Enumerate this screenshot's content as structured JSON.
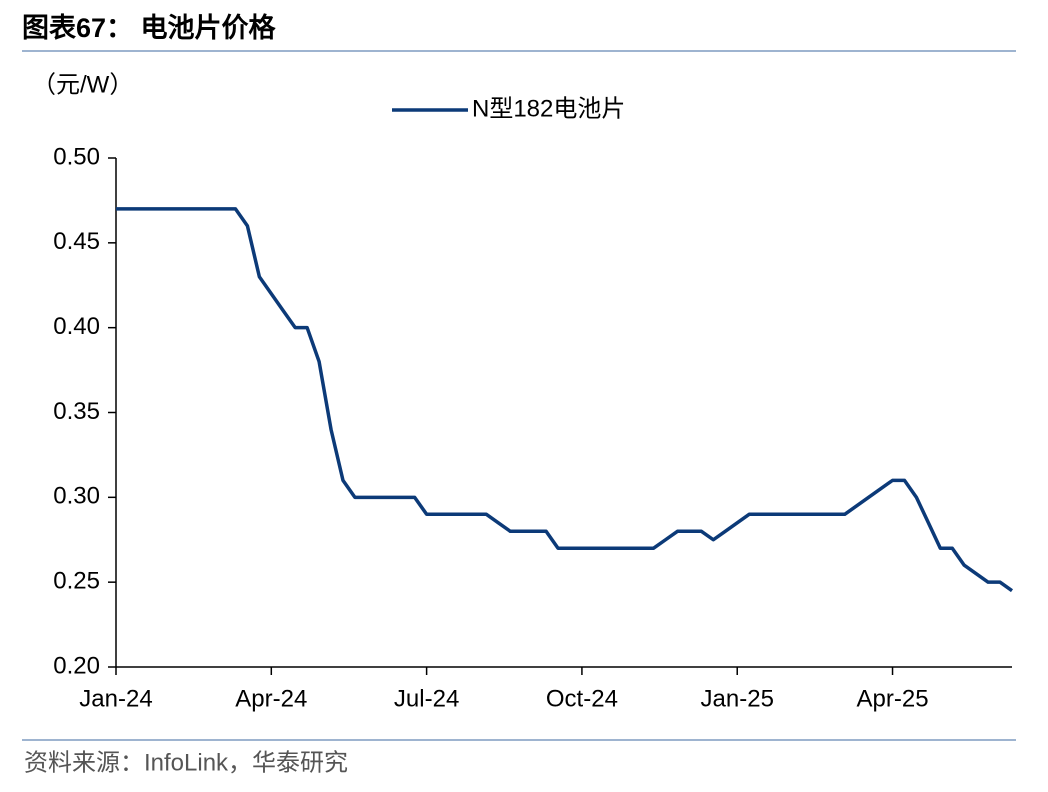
{
  "chart_data": {
    "type": "line",
    "title": "图表67： 电池片价格",
    "y_axis_label": "（元/W）",
    "source": "资料来源：InfoLink，华泰研究",
    "categories": [
      "Jan-24",
      null,
      null,
      null,
      null,
      null,
      null,
      null,
      null,
      null,
      null,
      null,
      null,
      "Apr-24",
      null,
      null,
      null,
      null,
      null,
      null,
      null,
      null,
      null,
      null,
      null,
      null,
      "Jul-24",
      null,
      null,
      null,
      null,
      null,
      null,
      null,
      null,
      null,
      null,
      null,
      null,
      "Oct-24",
      null,
      null,
      null,
      null,
      null,
      null,
      null,
      null,
      null,
      null,
      null,
      null,
      "Jan-25",
      null,
      null,
      null,
      null,
      null,
      null,
      null,
      null,
      null,
      null,
      null,
      null,
      "Apr-25",
      null,
      null,
      null,
      null,
      null,
      null,
      null,
      null,
      null,
      null
    ],
    "series": [
      {
        "name": "N型182电池片",
        "color": "#0c3a78",
        "values": [
          0.47,
          0.47,
          0.47,
          0.47,
          0.47,
          0.47,
          0.47,
          0.47,
          0.47,
          0.47,
          0.47,
          0.46,
          0.43,
          0.42,
          0.41,
          0.4,
          0.4,
          0.38,
          0.34,
          0.31,
          0.3,
          0.3,
          0.3,
          0.3,
          0.3,
          0.3,
          0.29,
          0.29,
          0.29,
          0.29,
          0.29,
          0.29,
          0.285,
          0.28,
          0.28,
          0.28,
          0.28,
          0.27,
          0.27,
          0.27,
          0.27,
          0.27,
          0.27,
          0.27,
          0.27,
          0.27,
          0.275,
          0.28,
          0.28,
          0.28,
          0.275,
          0.28,
          0.285,
          0.29,
          0.29,
          0.29,
          0.29,
          0.29,
          0.29,
          0.29,
          0.29,
          0.29,
          0.295,
          0.3,
          0.305,
          0.31,
          0.31,
          0.3,
          0.285,
          0.27,
          0.27,
          0.26,
          0.255,
          0.25,
          0.25,
          0.245
        ]
      }
    ],
    "ylim": [
      0.2,
      0.5
    ],
    "yticks": [
      {
        "value": 0.2,
        "label": "0.20"
      },
      {
        "value": 0.25,
        "label": "0.25"
      },
      {
        "value": 0.3,
        "label": "0.30"
      },
      {
        "value": 0.35,
        "label": "0.35"
      },
      {
        "value": 0.4,
        "label": "0.40"
      },
      {
        "value": 0.45,
        "label": "0.45"
      },
      {
        "value": 0.5,
        "label": "0.50"
      }
    ],
    "grid": false,
    "legend": "top"
  }
}
